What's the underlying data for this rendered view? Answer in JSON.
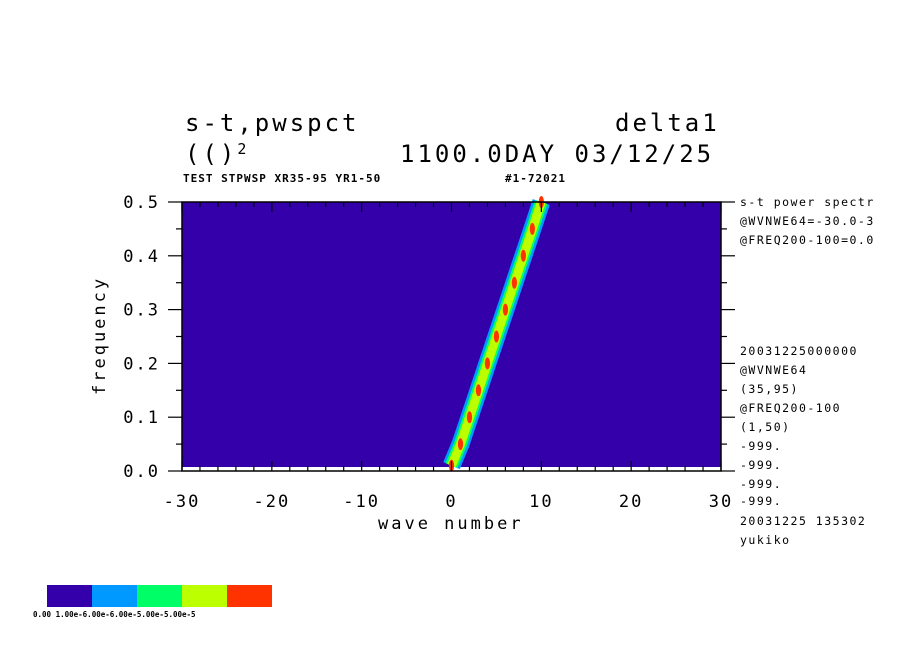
{
  "header": {
    "left_line1": "s-t,pwspct",
    "left_line2": "(()",
    "left_line2_sup": "2",
    "right_line1": "delta1",
    "right_line2": "1100.0DAY 03/12/25",
    "subtitle_left": "TEST STPWSP XR35-95 YR1-50",
    "subtitle_right": "#1-72021"
  },
  "side_info": {
    "top": [
      "s-t power spectr",
      "@WVNWE64=-30.0-3",
      "@FREQ200-100=0.0"
    ],
    "bottom": [
      "20031225000000",
      "@WVNWE64",
      "(35,95)",
      "@FREQ200-100",
      "(1,50)",
      "-999.",
      "-999.",
      "-999.",
      "-999.",
      "20031225 135302",
      "yukiko"
    ]
  },
  "colorbar": {
    "colors": [
      "#3300aa",
      "#0099ff",
      "#00ff66",
      "#bbff00",
      "#ff3300"
    ],
    "labels": "0.00 1.00e-6.00e-6.00e-5.00e-5.00e-5"
  },
  "chart_data": {
    "type": "heatmap",
    "xlabel": "wave number",
    "ylabel": "frequency",
    "xlim": [
      -30,
      30
    ],
    "ylim": [
      0,
      0.5
    ],
    "x_ticks": [
      "-30",
      "-20",
      "-10",
      "0",
      "10",
      "20",
      "30"
    ],
    "y_ticks": [
      "0.0",
      "0.1",
      "0.2",
      "0.3",
      "0.4",
      "0.5"
    ],
    "background_color": "#3300aa",
    "ridge": {
      "description_color_levels": [
        "#0099ff",
        "#00ff66",
        "#bbff00",
        "#ff3300"
      ],
      "points": [
        {
          "x": 0,
          "y": 0.01
        },
        {
          "x": 1,
          "y": 0.05
        },
        {
          "x": 2,
          "y": 0.1
        },
        {
          "x": 3,
          "y": 0.15
        },
        {
          "x": 4,
          "y": 0.2
        },
        {
          "x": 5,
          "y": 0.25
        },
        {
          "x": 6,
          "y": 0.3
        },
        {
          "x": 7,
          "y": 0.35
        },
        {
          "x": 8,
          "y": 0.4
        },
        {
          "x": 9,
          "y": 0.45
        },
        {
          "x": 10,
          "y": 0.5
        }
      ]
    }
  }
}
